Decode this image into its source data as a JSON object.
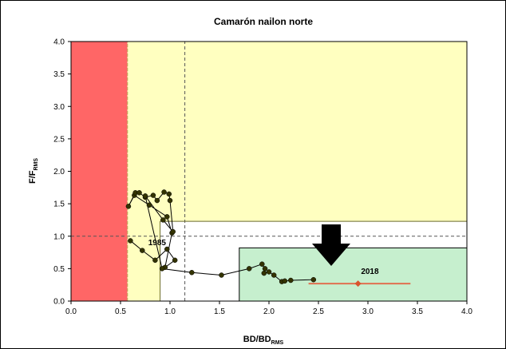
{
  "chart_data": {
    "type": "scatter",
    "title": "Camarón nailon norte",
    "xlabel": {
      "main": "BD/BD",
      "sub": "RMS"
    },
    "ylabel": {
      "main": "F/F",
      "sub": "RMS"
    },
    "xlim": [
      0,
      4
    ],
    "ylim": [
      0,
      4
    ],
    "xticks": [
      "0.0",
      "0.5",
      "1.0",
      "1.5",
      "2.0",
      "2.5",
      "3.0",
      "3.5",
      "4.0"
    ],
    "yticks": [
      "0.0",
      "0.5",
      "1.0",
      "1.5",
      "2.0",
      "2.5",
      "3.0",
      "3.5",
      "4.0"
    ],
    "grid": false,
    "zones": [
      {
        "name": "collapse",
        "x": [
          0,
          0.57
        ],
        "y": [
          0,
          4
        ],
        "color": "#ff6666"
      },
      {
        "name": "overexploited",
        "x": [
          0.57,
          4
        ],
        "y": [
          0,
          4
        ],
        "color": "#ffffc0"
      },
      {
        "name": "fully-exploited",
        "x": [
          0.9,
          4
        ],
        "y": [
          0,
          1.23
        ],
        "color": "#ffffff"
      },
      {
        "name": "underexploited",
        "x": [
          1.7,
          4
        ],
        "y": [
          0,
          0.82
        ],
        "color": "#c6efce"
      }
    ],
    "reference_lines": [
      {
        "orientation": "horizontal",
        "value": 1.0,
        "style": "dashed",
        "color": "#555555"
      },
      {
        "orientation": "vertical",
        "value": 1.15,
        "style": "dashed",
        "color": "#555555"
      }
    ],
    "series": [
      {
        "color": "#000000",
        "points": [
          [
            0.6,
            0.93
          ],
          [
            0.72,
            0.78
          ],
          [
            0.85,
            0.63
          ],
          [
            0.97,
            0.8
          ],
          [
            1.05,
            0.63
          ],
          [
            0.95,
            0.52
          ],
          [
            1.02,
            1.05
          ],
          [
            0.97,
            1.3
          ],
          [
            0.79,
            1.48
          ],
          [
            0.64,
            1.63
          ],
          [
            0.58,
            1.46
          ],
          [
            0.65,
            1.67
          ],
          [
            0.69,
            1.67
          ],
          [
            0.75,
            1.6
          ],
          [
            0.83,
            1.63
          ],
          [
            0.87,
            1.55
          ],
          [
            0.94,
            1.68
          ],
          [
            0.99,
            1.65
          ],
          [
            1.0,
            1.55
          ],
          [
            1.03,
            1.07
          ],
          [
            0.93,
            1.25
          ],
          [
            0.75,
            1.62
          ],
          [
            0.92,
            0.5
          ],
          [
            1.22,
            0.44
          ],
          [
            1.52,
            0.4
          ],
          [
            1.8,
            0.5
          ],
          [
            1.93,
            0.57
          ],
          [
            1.96,
            0.5
          ],
          [
            1.95,
            0.43
          ],
          [
            2.0,
            0.45
          ],
          [
            2.05,
            0.4
          ],
          [
            2.13,
            0.3
          ],
          [
            2.16,
            0.31
          ],
          [
            2.22,
            0.32
          ],
          [
            2.45,
            0.33
          ]
        ]
      }
    ],
    "current_point": {
      "x": 2.9,
      "y": 0.27,
      "x_interval": [
        2.4,
        3.43
      ],
      "color": "#e07050"
    },
    "annotations": [
      {
        "text": "1985",
        "x": 0.78,
        "y": 0.86
      },
      {
        "text": "2018",
        "x": 2.93,
        "y": 0.42
      }
    ]
  }
}
